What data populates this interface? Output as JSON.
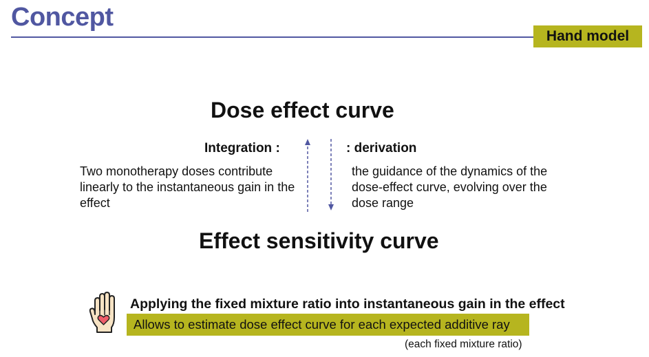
{
  "header": {
    "title": "Concept",
    "badge": "Hand model",
    "colors": {
      "title": "#5057a1",
      "badge": "#b6b51f"
    }
  },
  "main": {
    "dose_heading": "Dose effect curve",
    "integration_label": "Integration :",
    "derivation_label": ": derivation",
    "integration_text": "Two monotherapy doses contribute linearly to the instantaneous gain in the effect",
    "derivation_text": "the guidance of the dynamics of the dose-effect curve, evolving over the dose range",
    "sensitivity_heading": "Effect sensitivity curve"
  },
  "footer": {
    "icon": "hand-heart-icon",
    "apply_text": "Applying the fixed mixture ratio into instantaneous gain in the effect",
    "highlight_text": "Allows to estimate dose effect curve for each expected additive ray",
    "note": "(each fixed mixture ratio)"
  }
}
